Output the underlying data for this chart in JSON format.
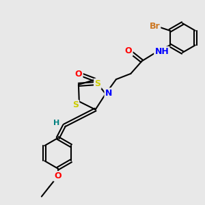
{
  "background_color": "#e8e8e8",
  "bond_color": "#000000",
  "atom_colors": {
    "Br": "#cc7722",
    "O": "#ff0000",
    "N": "#0000ff",
    "S": "#cccc00",
    "H_teal": "#008080",
    "C": "#000000"
  },
  "font_size_atoms": 9,
  "fig_size": [
    3.0,
    3.0
  ],
  "dpi": 100
}
